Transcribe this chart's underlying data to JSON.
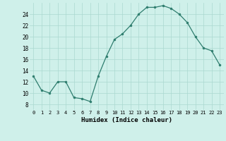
{
  "hours": [
    0,
    1,
    2,
    3,
    4,
    5,
    6,
    7,
    8,
    9,
    10,
    11,
    12,
    13,
    14,
    15,
    16,
    17,
    18,
    19,
    20,
    21,
    22,
    23
  ],
  "values": [
    13,
    10.5,
    10,
    12,
    12,
    9.2,
    9,
    8.5,
    13,
    16.5,
    19.5,
    20.5,
    22,
    24,
    25.2,
    25.2,
    25.5,
    25,
    24,
    22.5,
    20,
    18,
    17.5,
    15
  ],
  "line_color": "#2e7d6e",
  "marker_color": "#2e7d6e",
  "bg_color": "#cff0ea",
  "grid_color": "#aad8d0",
  "xlabel": "Humidex (Indice chaleur)",
  "xlim": [
    -0.5,
    23.5
  ],
  "ylim": [
    7,
    26
  ],
  "yticks": [
    8,
    10,
    12,
    14,
    16,
    18,
    20,
    22,
    24
  ],
  "xticks": [
    0,
    1,
    2,
    3,
    4,
    5,
    6,
    7,
    8,
    9,
    10,
    11,
    12,
    13,
    14,
    15,
    16,
    17,
    18,
    19,
    20,
    21,
    22,
    23
  ]
}
